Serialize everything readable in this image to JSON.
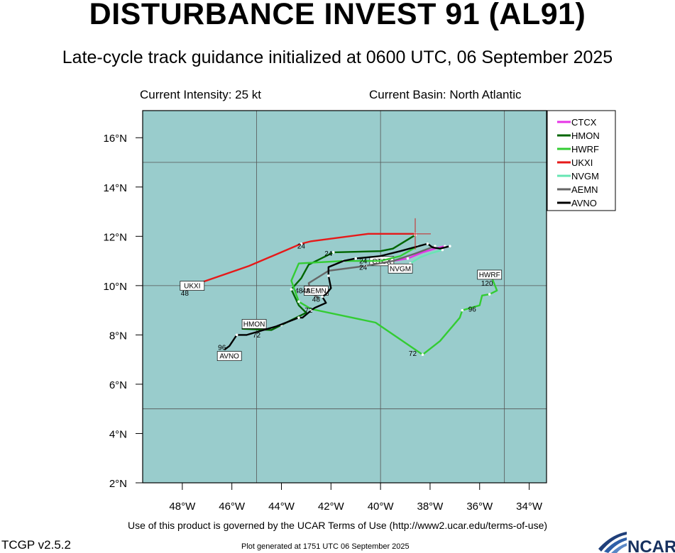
{
  "header": {
    "title": "DISTURBANCE INVEST 91 (AL91)",
    "subtitle": "Late-cycle track guidance initialized at 0600 UTC, 06 September 2025",
    "intensity": "Current Intensity: 25 kt",
    "basin": "Current Basin: North Atlantic"
  },
  "footer": {
    "terms": "Use of this product is governed by the UCAR Terms of Use (http://www2.ucar.edu/terms-of-use)",
    "version": "TCGP v2.5.2",
    "generated": "Plot generated at 1751 UTC   06 September 2025",
    "logo_text": "NCAR"
  },
  "chart_data": {
    "type": "line",
    "map_background": "#99cccc",
    "x_ticks": [
      {
        "v": -48,
        "label": "48°W"
      },
      {
        "v": -46,
        "label": "46°W"
      },
      {
        "v": -44,
        "label": "44°W"
      },
      {
        "v": -42,
        "label": "42°W"
      },
      {
        "v": -40,
        "label": "40°W"
      },
      {
        "v": -38,
        "label": "38°W"
      },
      {
        "v": -36,
        "label": "36°W"
      },
      {
        "v": -34,
        "label": "34°W"
      }
    ],
    "y_ticks": [
      {
        "v": 2,
        "label": "2°N"
      },
      {
        "v": 4,
        "label": "4°N"
      },
      {
        "v": 6,
        "label": "6°N"
      },
      {
        "v": 8,
        "label": "8°N"
      },
      {
        "v": 10,
        "label": "10°N"
      },
      {
        "v": 12,
        "label": "12°N"
      },
      {
        "v": 14,
        "label": "14°N"
      },
      {
        "v": 16,
        "label": "16°N"
      }
    ],
    "xlim": [
      -49.6,
      -33.3
    ],
    "ylim": [
      2,
      17.1
    ],
    "grid_lon": [
      -45,
      -40,
      -35
    ],
    "grid_lat": [
      5,
      10,
      15
    ],
    "current_position": {
      "lon": -38.6,
      "lat": 12.1
    },
    "legend_position": "top-right",
    "series": [
      {
        "name": "CTCX",
        "color": "#e633e6",
        "points": [
          [
            -37.4,
            11.6
          ],
          [
            -37.8,
            11.5
          ],
          [
            -38.3,
            11.35
          ],
          [
            -38.9,
            11.1
          ],
          [
            -39.5,
            11.0
          ]
        ],
        "tau_labels": [],
        "box_label": "CTCX",
        "box_at": [
          -39.95,
          10.95
        ]
      },
      {
        "name": "HMON",
        "color": "#006600",
        "points": [
          [
            -38.6,
            12.05
          ],
          [
            -39.5,
            11.5
          ],
          [
            -40.0,
            11.4
          ],
          [
            -41.9,
            11.35
          ],
          [
            -42.9,
            10.85
          ],
          [
            -43.2,
            10.3
          ],
          [
            -43.6,
            9.85
          ],
          [
            -43.3,
            9.2
          ],
          [
            -43.0,
            8.9
          ],
          [
            -44.0,
            8.4
          ],
          [
            -44.4,
            8.2
          ],
          [
            -45.6,
            8.25
          ]
        ],
        "tau_labels": [
          {
            "lon": -42.1,
            "lat": 11.2,
            "text": "24"
          },
          {
            "lon": -43.3,
            "lat": 9.7,
            "text": "48"
          },
          {
            "lon": -45.0,
            "lat": 7.9,
            "text": "72"
          }
        ],
        "box_label": "HMON",
        "box_at": [
          -45.1,
          8.4
        ]
      },
      {
        "name": "HWRF",
        "color": "#33cc33",
        "points": [
          [
            -38.5,
            11.6
          ],
          [
            -39.2,
            11.2
          ],
          [
            -40.0,
            11.0
          ],
          [
            -41.5,
            11.0
          ],
          [
            -43.3,
            10.9
          ],
          [
            -43.6,
            10.2
          ],
          [
            -43.3,
            9.35
          ],
          [
            -42.8,
            9.05
          ],
          [
            -40.2,
            8.5
          ],
          [
            -38.3,
            7.2
          ],
          [
            -37.6,
            7.75
          ],
          [
            -36.8,
            8.7
          ],
          [
            -36.7,
            9.0
          ],
          [
            -36.0,
            9.2
          ],
          [
            -35.9,
            9.6
          ],
          [
            -35.6,
            9.65
          ],
          [
            -35.3,
            9.8
          ],
          [
            -35.5,
            10.3
          ]
        ],
        "tau_labels": [
          {
            "lon": -38.7,
            "lat": 7.15,
            "text": "72"
          },
          {
            "lon": -36.3,
            "lat": 8.95,
            "text": "96"
          },
          {
            "lon": -35.7,
            "lat": 10.0,
            "text": "120"
          }
        ],
        "box_label": "HWRF",
        "box_at": [
          -35.6,
          10.4
        ]
      },
      {
        "name": "UKXI",
        "color": "#e61919",
        "points": [
          [
            -38.6,
            12.1
          ],
          [
            -40.5,
            12.1
          ],
          [
            -42.8,
            11.8
          ],
          [
            -43.2,
            11.7
          ],
          [
            -45.3,
            10.8
          ],
          [
            -47.9,
            9.9
          ]
        ],
        "tau_labels": [
          {
            "lon": -43.2,
            "lat": 11.5,
            "text": "24"
          },
          {
            "lon": -47.9,
            "lat": 9.6,
            "text": "48"
          }
        ],
        "box_label": "UKXI",
        "box_at": [
          -47.6,
          9.95
        ]
      },
      {
        "name": "NVGM",
        "color": "#66e6b3",
        "points": [
          [
            -37.5,
            11.45
          ],
          [
            -38.0,
            11.3
          ],
          [
            -38.4,
            11.15
          ],
          [
            -38.8,
            10.9
          ],
          [
            -39.3,
            10.7
          ]
        ],
        "tau_labels": [],
        "box_label": "NVGM",
        "box_at": [
          -39.2,
          10.65
        ]
      },
      {
        "name": "AEMN",
        "color": "#666666",
        "points": [
          [
            -37.8,
            11.6
          ],
          [
            -38.6,
            11.3
          ],
          [
            -39.5,
            11.0
          ],
          [
            -40.6,
            10.8
          ],
          [
            -42.1,
            10.6
          ],
          [
            -42.9,
            10.1
          ],
          [
            -42.8,
            9.7
          ],
          [
            -42.5,
            9.5
          ]
        ],
        "tau_labels": [
          {
            "lon": -40.7,
            "lat": 10.65,
            "text": "24"
          },
          {
            "lon": -42.6,
            "lat": 9.35,
            "text": "48"
          }
        ],
        "box_label": "AEMN",
        "box_at": [
          -42.6,
          9.75
        ]
      },
      {
        "name": "AVNO",
        "color": "#000000",
        "points": [
          [
            -37.2,
            11.6
          ],
          [
            -37.6,
            11.5
          ],
          [
            -37.9,
            11.55
          ],
          [
            -38.1,
            11.7
          ],
          [
            -39.2,
            11.4
          ],
          [
            -40.0,
            11.2
          ],
          [
            -41.0,
            11.1
          ],
          [
            -41.5,
            11.0
          ],
          [
            -42.1,
            10.75
          ],
          [
            -42.1,
            10.4
          ],
          [
            -42.0,
            9.9
          ],
          [
            -42.2,
            9.65
          ],
          [
            -42.35,
            9.55
          ],
          [
            -42.2,
            9.3
          ],
          [
            -42.65,
            9.1
          ],
          [
            -42.8,
            9.0
          ],
          [
            -42.85,
            8.95
          ],
          [
            -43.15,
            8.7
          ],
          [
            -43.3,
            8.7
          ],
          [
            -44.2,
            8.35
          ],
          [
            -45.4,
            8.0
          ],
          [
            -45.8,
            8.0
          ],
          [
            -46.1,
            7.55
          ],
          [
            -46.3,
            7.4
          ]
        ],
        "tau_labels": [
          {
            "lon": -40.7,
            "lat": 10.9,
            "text": "24"
          },
          {
            "lon": -43.0,
            "lat": 9.7,
            "text": "48"
          },
          {
            "lon": -42.9,
            "lat": 8.9,
            "text": "72"
          },
          {
            "lon": -46.4,
            "lat": 7.4,
            "text": "96"
          }
        ],
        "box_label": "AVNO",
        "box_at": [
          -46.1,
          7.1
        ]
      }
    ]
  }
}
